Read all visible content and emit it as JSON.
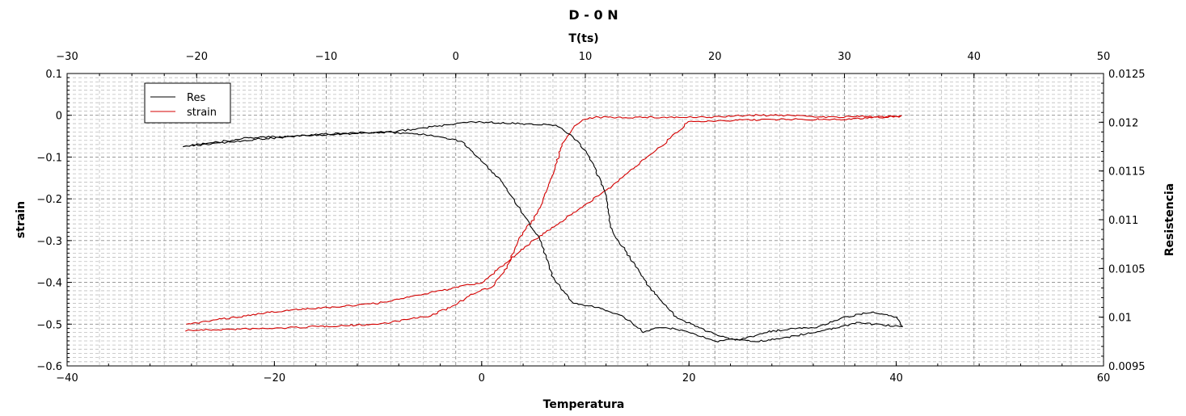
{
  "chart_data": {
    "type": "line",
    "title": "D - 0 N",
    "xlabel": "Temperatura",
    "ylabel": "strain",
    "x2label": "T(ts)",
    "y2label": "Resistencia",
    "xlim": [
      -40,
      60
    ],
    "ylim": [
      -0.6,
      0.1
    ],
    "x2lim": [
      -30,
      50
    ],
    "y2lim": [
      0.0095,
      0.0125
    ],
    "x_ticks": [
      "−40",
      "−20",
      "0",
      "20",
      "40",
      "60"
    ],
    "y_ticks": [
      "0.1",
      "0",
      "−0.1",
      "−0.2",
      "−0.3",
      "−0.4",
      "−0.5",
      "−0.6"
    ],
    "x2_ticks": [
      "−30",
      "−20",
      "−10",
      "0",
      "10",
      "20",
      "30",
      "40",
      "50"
    ],
    "y2_ticks": [
      "0.0125",
      "0.012",
      "0.0115",
      "0.011",
      "0.0105",
      "0.01",
      "0.0095"
    ],
    "grid": true,
    "legend": {
      "position": "top-left",
      "entries": [
        "Res",
        "strain"
      ]
    },
    "series": [
      {
        "name": "strain",
        "color": "#d40000",
        "axis": "left",
        "x": [
          -28.5,
          -20,
          -10,
          -5,
          -3,
          -1,
          1,
          2.5,
          3.5,
          4,
          5,
          6,
          6.5,
          7,
          7.5,
          8,
          8.5,
          9,
          10,
          11,
          12,
          15,
          20,
          22,
          24,
          26,
          30,
          34,
          36,
          40.5,
          34,
          28,
          20,
          18,
          15,
          12,
          5,
          0,
          -10,
          -20,
          -28.5
        ],
        "y": [
          -0.515,
          -0.51,
          -0.5,
          -0.48,
          -0.46,
          -0.43,
          -0.41,
          -0.36,
          -0.3,
          -0.28,
          -0.25,
          -0.2,
          -0.16,
          -0.13,
          -0.09,
          -0.06,
          -0.04,
          -0.025,
          -0.01,
          -0.005,
          -0.005,
          -0.005,
          -0.005,
          -0.005,
          -0.002,
          0,
          0,
          -0.005,
          -0.003,
          -0.003,
          -0.01,
          -0.01,
          -0.015,
          -0.06,
          -0.12,
          -0.18,
          -0.3,
          -0.4,
          -0.45,
          -0.47,
          -0.5
        ]
      },
      {
        "name": "Res",
        "color": "#000000",
        "axis": "right",
        "x2": [
          -21,
          -15,
          -10,
          -6,
          -3,
          -1,
          0.5,
          2,
          3.5,
          4.5,
          5.5,
          6.5,
          7,
          7.5,
          9,
          11,
          13,
          14.5,
          16,
          18,
          20,
          20.6,
          21,
          22,
          24,
          26,
          28,
          30,
          32,
          34,
          34.5,
          33,
          31,
          29,
          27,
          25,
          23,
          21,
          19.5,
          17,
          15,
          13.5,
          12,
          11.5,
          10.5,
          9.5,
          8,
          7.5,
          7,
          6,
          4,
          2,
          1,
          -2,
          -5,
          -10,
          -16,
          -21
        ],
        "y2": [
          0.01175,
          0.01183,
          0.01188,
          0.0119,
          0.01188,
          0.01185,
          0.0118,
          0.0116,
          0.0114,
          0.0112,
          0.011,
          0.0108,
          0.0106,
          0.0104,
          0.01015,
          0.0101,
          0.01,
          0.00985,
          0.0099,
          0.00985,
          0.00975,
          0.00976,
          0.00978,
          0.00977,
          0.00985,
          0.00988,
          0.0099,
          0.01,
          0.01005,
          0.01,
          0.0099,
          0.00992,
          0.00994,
          0.00988,
          0.00983,
          0.00978,
          0.00975,
          0.00978,
          0.00985,
          0.01,
          0.0103,
          0.0106,
          0.0109,
          0.0113,
          0.0116,
          0.0118,
          0.01195,
          0.01197,
          0.01198,
          0.01198,
          0.01199,
          0.012,
          0.012,
          0.01195,
          0.0119,
          0.01187,
          0.01184,
          0.01175
        ]
      }
    ]
  }
}
